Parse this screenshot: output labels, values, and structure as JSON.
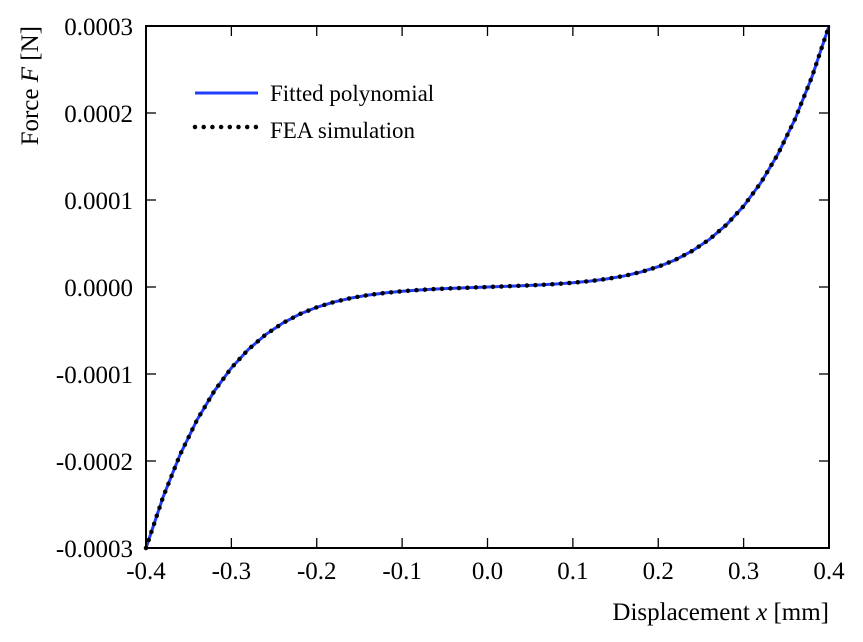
{
  "chart_data": {
    "type": "line",
    "title": "",
    "xlabel_parts": {
      "prefix": "Displacement ",
      "var": "x",
      "suffix": " [mm]"
    },
    "ylabel_parts": {
      "prefix": "Force ",
      "var": "F",
      "suffix": " [N]"
    },
    "xlim": [
      -0.4,
      0.4
    ],
    "ylim": [
      -0.0003,
      0.0003
    ],
    "xticks": [
      -0.4,
      -0.3,
      -0.2,
      -0.1,
      0.0,
      0.1,
      0.2,
      0.3,
      0.4
    ],
    "xtick_labels": [
      "-0.4",
      "-0.3",
      "-0.2",
      "-0.1",
      "0.0",
      "0.1",
      "0.2",
      "0.3",
      "0.4"
    ],
    "yticks": [
      -0.0003,
      -0.0002,
      -0.0001,
      0.0,
      0.0001,
      0.0002,
      0.0003
    ],
    "ytick_labels": [
      "-0.0003",
      "-0.0002",
      "-0.0001",
      "0.0000",
      "0.0001",
      "0.0002",
      "0.0003"
    ],
    "grid": false,
    "legend_placement": "top-left",
    "x": [
      0.0,
      0.02,
      0.04,
      0.06,
      0.08,
      0.1,
      0.12,
      0.14,
      0.16,
      0.18,
      0.2,
      0.22,
      0.24,
      0.26,
      0.28,
      0.3,
      0.32,
      0.34,
      0.36,
      0.38,
      0.4
    ],
    "symmetry": "odd",
    "series": [
      {
        "name": "Fitted polynomial",
        "style": "solid",
        "color": "#1f3cff",
        "y": [
          0.0,
          7e-07,
          1.5e-06,
          2.3e-06,
          3.4e-06,
          4.9e-06,
          6.8e-06,
          9.3e-06,
          1.27e-05,
          1.73e-05,
          2.33e-05,
          3.12e-05,
          4.16e-05,
          5.48e-05,
          7.17e-05,
          9.3e-05,
          0.0001196,
          0.0001524,
          0.0001925,
          0.0002414,
          0.0003
        ]
      },
      {
        "name": "FEA simulation",
        "style": "dotted",
        "color": "#000000",
        "y": [
          0.0,
          7e-07,
          1.5e-06,
          2.3e-06,
          3.4e-06,
          4.9e-06,
          6.8e-06,
          9.3e-06,
          1.27e-05,
          1.73e-05,
          2.33e-05,
          3.12e-05,
          4.16e-05,
          5.48e-05,
          7.17e-05,
          9.3e-05,
          0.0001196,
          0.0001524,
          0.0001925,
          0.0002414,
          0.0003
        ]
      }
    ]
  }
}
